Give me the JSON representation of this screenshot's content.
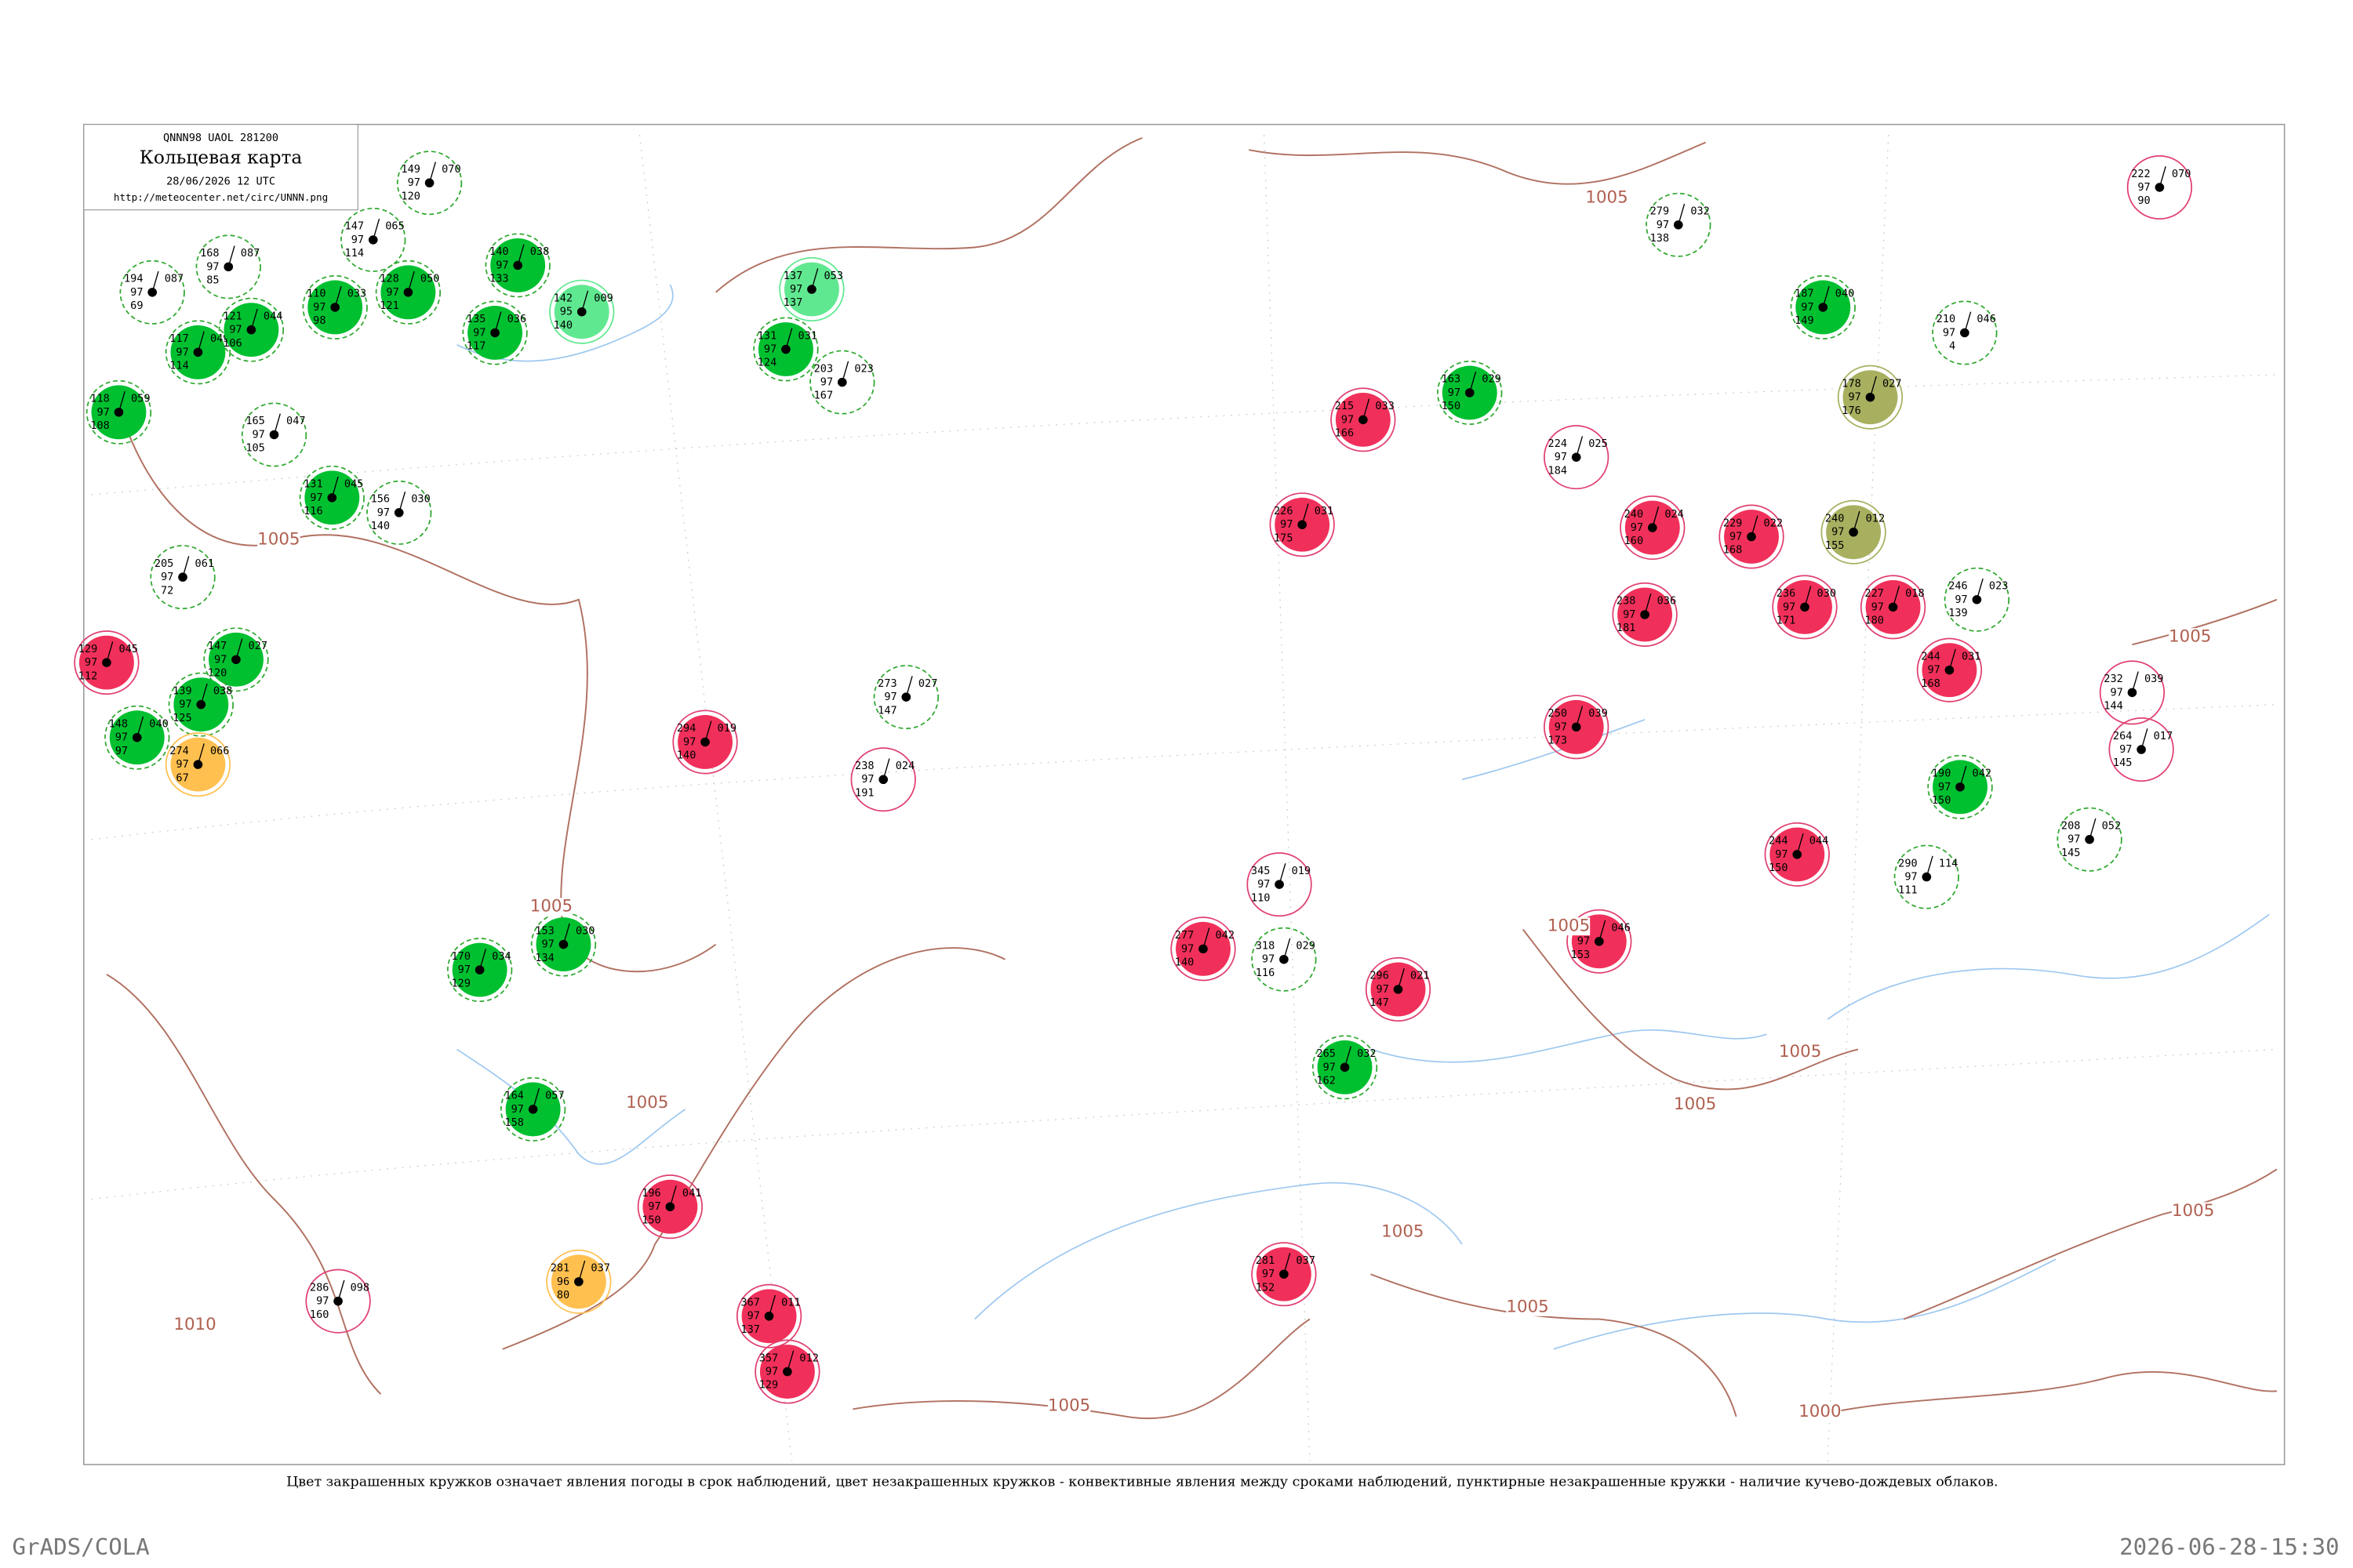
{
  "header": {
    "code": "QNNN98  UAOL  281200",
    "title": "Кольцевая карта",
    "date": "28/06/2026 12 UTC",
    "url": "http://meteocenter.net/circ/UNNN.png"
  },
  "caption": "Цвет закрашенных кружков означает явления погоды в срок наблюдений, цвет незакрашенных кружков - конвективные явления между сроками наблюдений, пунктирные незакрашенные кружки - наличие кучево-дождевых облаков.",
  "footer": {
    "left": "GrADS/COLA",
    "right": "2026-06-28-15:30"
  },
  "isobars": [
    "1005",
    "1005",
    "1005",
    "1005",
    "1005",
    "1005",
    "1005",
    "1005",
    "1005",
    "1005",
    "1005",
    "1005",
    "1000",
    "1010"
  ],
  "stations": [
    {
      "p": "149",
      "dp": "070",
      "t": "97",
      "v": "120",
      "ring": "#2fa82f",
      "ring_dashed": true
    },
    {
      "p": "147",
      "dp": "065",
      "t": "97",
      "v": "114",
      "ring": "#2fa82f",
      "ring_dashed": true
    },
    {
      "p": "168",
      "dp": "087",
      "t": "97",
      "v": "85",
      "ring": "#2fa82f",
      "ring_dashed": true
    },
    {
      "p": "194",
      "dp": "087",
      "t": "97",
      "v": "69",
      "ring": "#2fa82f",
      "ring_dashed": true
    },
    {
      "p": "117",
      "dp": "049",
      "t": "97",
      "v": "114",
      "fill": "#00c030",
      "ring": "#2fa82f",
      "ring_dashed": true
    },
    {
      "p": "121",
      "dp": "044",
      "t": "97",
      "v": "106",
      "fill": "#00c030",
      "ring": "#2fa82f",
      "ring_dashed": true
    },
    {
      "p": "110",
      "dp": "033",
      "t": "97",
      "v": "98",
      "fill": "#00c030",
      "ring": "#2fa82f",
      "ring_dashed": true
    },
    {
      "p": "128",
      "dp": "050",
      "t": "97",
      "v": "121",
      "fill": "#00c030",
      "ring": "#2fa82f",
      "ring_dashed": true
    },
    {
      "p": "118",
      "dp": "059",
      "t": "97",
      "v": "108",
      "fill": "#00c030",
      "ring": "#2fa82f",
      "ring_dashed": true
    },
    {
      "p": "140",
      "dp": "038",
      "t": "97",
      "v": "133",
      "fill": "#00c030",
      "ring": "#2fa82f",
      "ring_dashed": true
    },
    {
      "p": "135",
      "dp": "036",
      "t": "97",
      "v": "117",
      "fill": "#00c030",
      "ring": "#2fa82f",
      "ring_dashed": true
    },
    {
      "p": "142",
      "dp": "009",
      "t": "95",
      "v": "140",
      "fill": "#60e890",
      "ring": "#60e890",
      "ring_dashed": false
    },
    {
      "p": "137",
      "dp": "053",
      "t": "97",
      "v": "137",
      "fill": "#60e890",
      "ring": "#60e890",
      "ring_dashed": false
    },
    {
      "p": "131",
      "dp": "031",
      "t": "97",
      "v": "124",
      "fill": "#00c030",
      "ring": "#2fa82f",
      "ring_dashed": true
    },
    {
      "p": "203",
      "dp": "023",
      "t": "97",
      "v": "167",
      "ring": "#2fa82f",
      "ring_dashed": true
    },
    {
      "p": "165",
      "dp": "047",
      "t": "97",
      "v": "105",
      "ring": "#2fa82f",
      "ring_dashed": true
    },
    {
      "p": "131",
      "dp": "045",
      "t": "97",
      "v": "116",
      "fill": "#00c030",
      "ring": "#2fa82f",
      "ring_dashed": true
    },
    {
      "p": "156",
      "dp": "030",
      "t": "97",
      "v": "140",
      "ring": "#2fa82f",
      "ring_dashed": true
    },
    {
      "p": "205",
      "dp": "061",
      "t": "97",
      "v": "72",
      "ring": "#2fa82f",
      "ring_dashed": true
    },
    {
      "p": "129",
      "dp": "045",
      "t": "97",
      "v": "112",
      "fill": "#f0305a",
      "ring": "#e04070",
      "ring_dashed": false
    },
    {
      "p": "147",
      "dp": "027",
      "t": "97",
      "v": "120",
      "fill": "#00c030",
      "ring": "#2fa82f",
      "ring_dashed": true
    },
    {
      "p": "139",
      "dp": "038",
      "t": "97",
      "v": "125",
      "fill": "#00c030",
      "ring": "#2fa82f",
      "ring_dashed": true
    },
    {
      "p": "148",
      "dp": "040",
      "t": "97",
      "v": "97",
      "fill": "#00c030",
      "ring": "#2fa82f",
      "ring_dashed": true
    },
    {
      "p": "274",
      "dp": "066",
      "t": "97",
      "v": "67",
      "fill": "#ffc050",
      "ring": "#ffc050",
      "ring_dashed": false
    },
    {
      "p": "170",
      "dp": "034",
      "t": "97",
      "v": "129",
      "fill": "#00c030",
      "ring": "#2fa82f",
      "ring_dashed": true
    },
    {
      "p": "153",
      "dp": "030",
      "t": "97",
      "v": "134",
      "fill": "#00c030",
      "ring": "#2fa82f",
      "ring_dashed": true
    },
    {
      "p": "164",
      "dp": "057",
      "t": "97",
      "v": "158",
      "fill": "#00c030",
      "ring": "#2fa82f",
      "ring_dashed": true
    },
    {
      "p": "196",
      "dp": "041",
      "t": "97",
      "v": "150",
      "fill": "#f0305a",
      "ring": "#e04070",
      "ring_dashed": false
    },
    {
      "p": "281",
      "dp": "037",
      "t": "96",
      "v": "80",
      "fill": "#ffc050",
      "ring": "#ffc050",
      "ring_dashed": false
    },
    {
      "p": "294",
      "dp": "019",
      "t": "97",
      "v": "140",
      "fill": "#f0305a",
      "ring": "#e04070",
      "ring_dashed": false
    },
    {
      "p": "273",
      "dp": "027",
      "t": "97",
      "v": "147",
      "ring": "#2fa82f",
      "ring_dashed": true
    },
    {
      "p": "238",
      "dp": "024",
      "t": "97",
      "v": "191",
      "ring": "#e04070",
      "ring_dashed": false
    },
    {
      "p": "215",
      "dp": "033",
      "t": "97",
      "v": "166",
      "fill": "#f0305a",
      "ring": "#e04070",
      "ring_dashed": false
    },
    {
      "p": "163",
      "dp": "029",
      "t": "97",
      "v": "150",
      "fill": "#00c030",
      "ring": "#2fa82f",
      "ring_dashed": true
    },
    {
      "p": "224",
      "dp": "025",
      "t": "97",
      "v": "184",
      "ring": "#e04070",
      "ring_dashed": false
    },
    {
      "p": "226",
      "dp": "031",
      "t": "97",
      "v": "175",
      "fill": "#f0305a",
      "ring": "#e04070",
      "ring_dashed": false
    },
    {
      "p": "240",
      "dp": "024",
      "t": "97",
      "v": "160",
      "fill": "#f0305a",
      "ring": "#e04070",
      "ring_dashed": false
    },
    {
      "p": "229",
      "dp": "022",
      "t": "97",
      "v": "168",
      "fill": "#f0305a",
      "ring": "#e04070",
      "ring_dashed": false
    },
    {
      "p": "240",
      "dp": "012",
      "t": "97",
      "v": "155",
      "fill": "#a8b060",
      "ring": "#a8b060",
      "ring_dashed": false
    },
    {
      "p": "187",
      "dp": "040",
      "t": "97",
      "v": "149",
      "fill": "#00c030",
      "ring": "#2fa82f",
      "ring_dashed": true
    },
    {
      "p": "178",
      "dp": "027",
      "t": "97",
      "v": "176",
      "fill": "#a8b060",
      "ring": "#a8b060",
      "ring_dashed": false
    },
    {
      "p": "236",
      "dp": "030",
      "t": "97",
      "v": "171",
      "fill": "#f0305a",
      "ring": "#e04070",
      "ring_dashed": false
    },
    {
      "p": "227",
      "dp": "018",
      "t": "97",
      "v": "180",
      "fill": "#f0305a",
      "ring": "#e04070",
      "ring_dashed": false
    },
    {
      "p": "238",
      "dp": "036",
      "t": "97",
      "v": "181",
      "fill": "#f0305a",
      "ring": "#e04070",
      "ring_dashed": false
    },
    {
      "p": "250",
      "dp": "039",
      "t": "97",
      "v": "173",
      "fill": "#f0305a",
      "ring": "#e04070",
      "ring_dashed": false
    },
    {
      "p": "190",
      "dp": "042",
      "t": "97",
      "v": "150",
      "fill": "#00c030",
      "ring": "#2fa82f",
      "ring_dashed": true
    },
    {
      "p": "244",
      "dp": "031",
      "t": "97",
      "v": "168",
      "fill": "#f0305a",
      "ring": "#e04070",
      "ring_dashed": false
    },
    {
      "p": "277",
      "dp": "042",
      "t": "97",
      "v": "140",
      "fill": "#f0305a",
      "ring": "#e04070",
      "ring_dashed": false
    },
    {
      "p": "296",
      "dp": "021",
      "t": "97",
      "v": "147",
      "fill": "#f0305a",
      "ring": "#e04070",
      "ring_dashed": false
    },
    {
      "p": "252",
      "dp": "046",
      "t": "97",
      "v": "153",
      "fill": "#f0305a",
      "ring": "#e04070",
      "ring_dashed": false
    },
    {
      "p": "244",
      "dp": "044",
      "t": "97",
      "v": "150",
      "fill": "#f0305a",
      "ring": "#e04070",
      "ring_dashed": false
    },
    {
      "p": "265",
      "dp": "032",
      "t": "97",
      "v": "162",
      "fill": "#00c030",
      "ring": "#2fa82f",
      "ring_dashed": true
    },
    {
      "p": "281",
      "dp": "037",
      "t": "97",
      "v": "152",
      "fill": "#f0305a",
      "ring": "#e04070",
      "ring_dashed": false
    },
    {
      "p": "367",
      "dp": "011",
      "t": "97",
      "v": "137",
      "fill": "#f0305a",
      "ring": "#e04070",
      "ring_dashed": false
    },
    {
      "p": "357",
      "dp": "012",
      "t": "97",
      "v": "129",
      "fill": "#f0305a",
      "ring": "#e04070",
      "ring_dashed": false
    },
    {
      "p": "222",
      "dp": "070",
      "t": "97",
      "v": "90",
      "ring": "#e04070",
      "ring_dashed": false
    },
    {
      "p": "210",
      "dp": "046",
      "t": "97",
      "v": "4",
      "ring": "#2fa82f",
      "ring_dashed": true
    },
    {
      "p": "279",
      "dp": "032",
      "t": "97",
      "v": "138",
      "ring": "#2fa82f",
      "ring_dashed": true
    },
    {
      "p": "246",
      "dp": "023",
      "t": "97",
      "v": "139",
      "ring": "#2fa82f",
      "ring_dashed": true
    },
    {
      "p": "232",
      "dp": "039",
      "t": "97",
      "v": "144",
      "ring": "#e04070",
      "ring_dashed": false
    },
    {
      "p": "264",
      "dp": "017",
      "t": "97",
      "v": "145",
      "ring": "#e04070",
      "ring_dashed": false
    },
    {
      "p": "318",
      "dp": "029",
      "t": "97",
      "v": "116",
      "ring": "#2fa82f",
      "ring_dashed": true
    },
    {
      "p": "345",
      "dp": "019",
      "t": "97",
      "v": "110",
      "ring": "#e04070",
      "ring_dashed": false
    },
    {
      "p": "290",
      "dp": "114",
      "t": "97",
      "v": "111",
      "ring": "#2fa82f",
      "ring_dashed": true
    },
    {
      "p": "208",
      "dp": "052",
      "t": "97",
      "v": "145",
      "ring": "#2fa82f",
      "ring_dashed": true
    },
    {
      "p": "286",
      "dp": "098",
      "t": "97",
      "v": "160",
      "ring": "#e04070",
      "ring_dashed": false
    }
  ]
}
